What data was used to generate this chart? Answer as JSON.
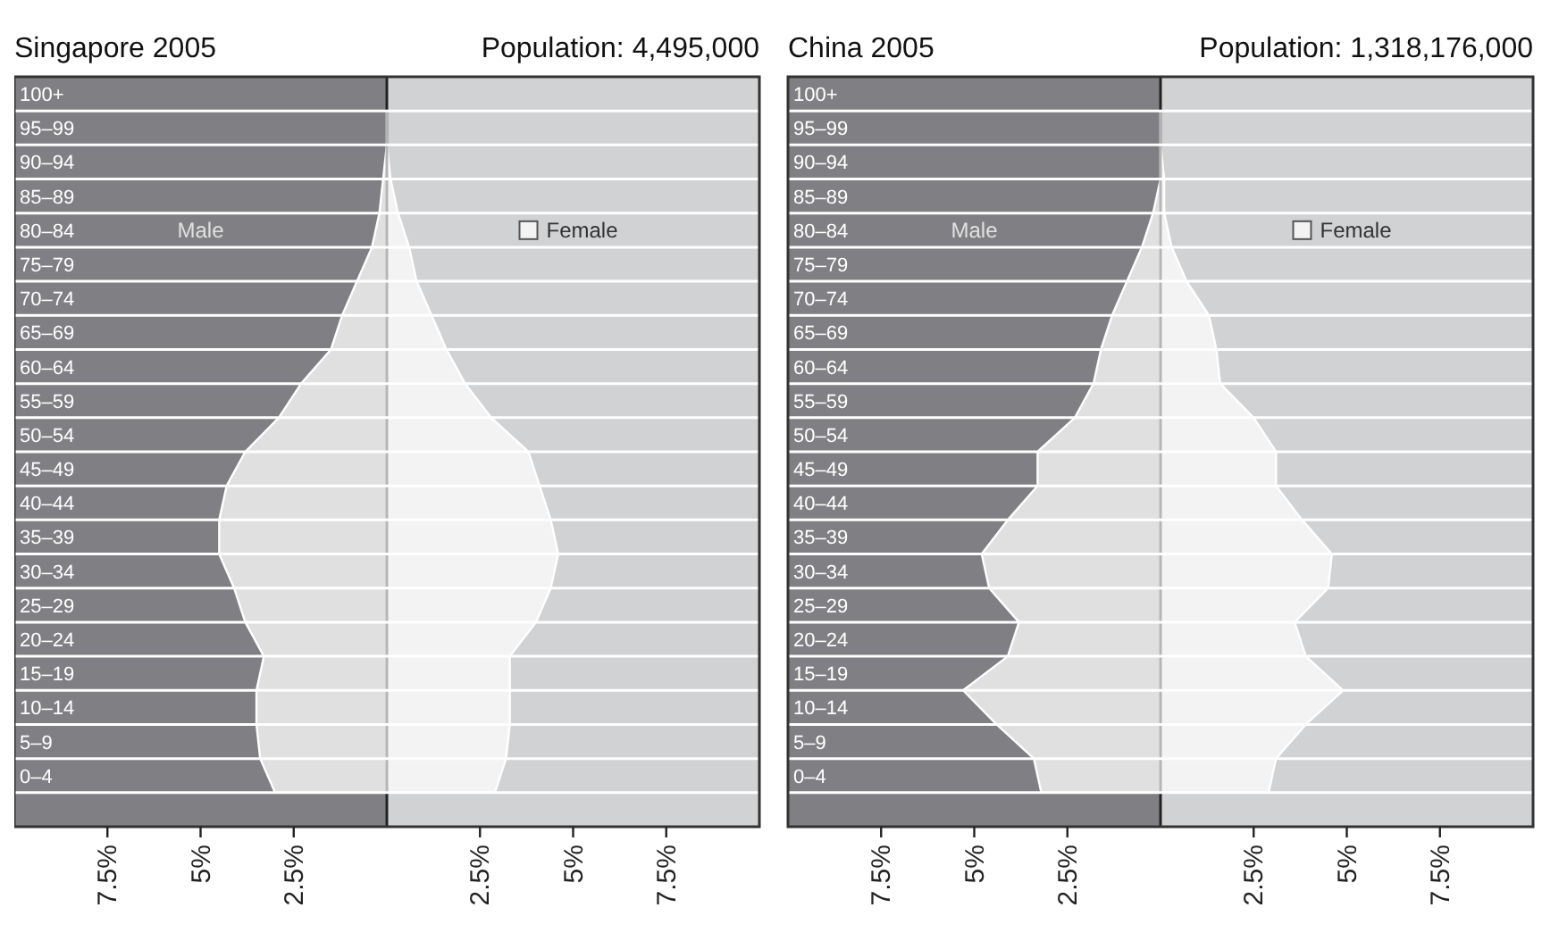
{
  "chart_data": [
    {
      "type": "area",
      "orientation": "horizontal",
      "title": "Singapore 2005",
      "subtitle": "Population: 4,495,000",
      "categories": [
        "100+",
        "95–99",
        "90–94",
        "85–89",
        "80–84",
        "75–79",
        "70–74",
        "65–69",
        "60–64",
        "55–59",
        "50–54",
        "45–49",
        "40–44",
        "35–39",
        "30–34",
        "25–29",
        "20–24",
        "15–19",
        "10–14",
        "5–9",
        "0–4"
      ],
      "series": [
        {
          "name": "Male",
          "color": "#e0e0e0",
          "values": [
            0,
            0,
            -0.1,
            -0.2,
            -0.4,
            -0.8,
            -1.2,
            -1.5,
            -2.3,
            -2.9,
            -3.8,
            -4.3,
            -4.5,
            -4.5,
            -4.1,
            -3.8,
            -3.3,
            -3.5,
            -3.5,
            -3.4,
            -3.0
          ]
        },
        {
          "name": "Female",
          "color": "#f3f3f3",
          "values": [
            0,
            0,
            0.1,
            0.3,
            0.6,
            0.8,
            1.2,
            1.6,
            2.1,
            2.8,
            3.8,
            4.1,
            4.4,
            4.6,
            4.4,
            4.0,
            3.3,
            3.3,
            3.3,
            3.2,
            2.9
          ]
        }
      ],
      "xlim": [
        -10,
        10
      ],
      "grid": "y",
      "bands": [
        {
          "axis": "x",
          "from": -10,
          "to": 0,
          "color": "#808084"
        },
        {
          "axis": "x",
          "from": 0,
          "to": 10,
          "color": "#d1d2d4"
        }
      ],
      "xticks": [
        {
          "value": -7.5,
          "label": "7.5%"
        },
        {
          "value": -5,
          "label": "5%"
        },
        {
          "value": -2.5,
          "label": "2.5%"
        },
        {
          "value": 2.5,
          "label": "2.5%"
        },
        {
          "value": 5,
          "label": "5%"
        },
        {
          "value": 7.5,
          "label": "7.5%"
        }
      ]
    },
    {
      "type": "area",
      "orientation": "horizontal",
      "title": "China 2005",
      "subtitle": "Population: 1,318,176,000",
      "categories": [
        "100+",
        "95–99",
        "90–94",
        "85–89",
        "80–84",
        "75–79",
        "70–74",
        "65–69",
        "60–64",
        "55–59",
        "50–54",
        "45–49",
        "40–44",
        "35–39",
        "30–34",
        "25–29",
        "20–24",
        "15–19",
        "10–14",
        "5–9",
        "0–4"
      ],
      "series": [
        {
          "name": "Male",
          "color": "#e0e0e0",
          "values": [
            0,
            0,
            0,
            -0.2,
            -0.5,
            -0.9,
            -1.3,
            -1.6,
            -1.8,
            -2.3,
            -3.3,
            -3.3,
            -4.1,
            -4.8,
            -4.6,
            -3.8,
            -4.1,
            -5.3,
            -4.4,
            -3.4,
            -3.2
          ]
        },
        {
          "name": "Female",
          "color": "#f3f3f3",
          "values": [
            0,
            0,
            0.1,
            0.1,
            0.3,
            0.7,
            1.3,
            1.5,
            1.6,
            2.5,
            3.1,
            3.1,
            3.8,
            4.6,
            4.5,
            3.6,
            3.9,
            4.9,
            3.9,
            3.1,
            2.9
          ]
        }
      ],
      "xlim": [
        -10,
        10
      ],
      "grid": "y",
      "bands": [
        {
          "axis": "x",
          "from": -10,
          "to": 0,
          "color": "#808084"
        },
        {
          "axis": "x",
          "from": 0,
          "to": 10,
          "color": "#d1d2d4"
        }
      ],
      "xticks": [
        {
          "value": -7.5,
          "label": "7.5%"
        },
        {
          "value": -5,
          "label": "5%"
        },
        {
          "value": -2.5,
          "label": "2.5%"
        },
        {
          "value": 2.5,
          "label": "2.5%"
        },
        {
          "value": 5,
          "label": "5%"
        },
        {
          "value": 7.5,
          "label": "7.5%"
        }
      ]
    }
  ]
}
